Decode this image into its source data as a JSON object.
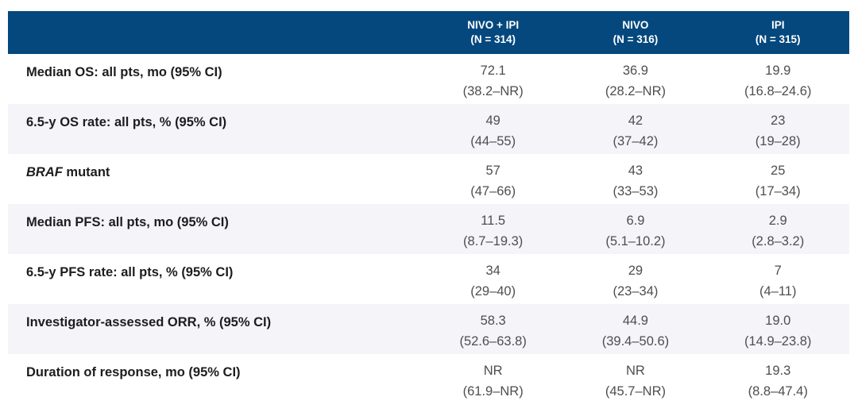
{
  "colors": {
    "header_bg": "#04487E",
    "header_text": "#FFFFFF",
    "row_bg": "#FFFFFF",
    "row_alt_bg": "#F5F5F9",
    "label_text": "#1D1D1F",
    "value_text": "#4E4E50"
  },
  "table": {
    "header": {
      "cols": [
        {
          "name": "NIVO + IPI",
          "n": "(N = 314)"
        },
        {
          "name": "NIVO",
          "n": "(N = 316)"
        },
        {
          "name": "IPI",
          "n": "(N = 315)"
        }
      ]
    },
    "rows": [
      {
        "label_italic": "",
        "label": "Median OS: all pts, mo (95% CI)",
        "cells": [
          {
            "value": "72.1",
            "ci": "(38.2–NR)"
          },
          {
            "value": "36.9",
            "ci": "(28.2–NR)"
          },
          {
            "value": "19.9",
            "ci": "(16.8–24.6)"
          }
        ]
      },
      {
        "label_italic": "",
        "label": "6.5-y OS rate: all pts, % (95% CI)",
        "cells": [
          {
            "value": "49",
            "ci": "(44–55)"
          },
          {
            "value": "42",
            "ci": "(37–42)"
          },
          {
            "value": "23",
            "ci": "(19–28)"
          }
        ]
      },
      {
        "label_italic": "BRAF",
        "label": " mutant",
        "cells": [
          {
            "value": "57",
            "ci": "(47–66)"
          },
          {
            "value": "43",
            "ci": "(33–53)"
          },
          {
            "value": "25",
            "ci": "(17–34)"
          }
        ]
      },
      {
        "label_italic": "",
        "label": "Median PFS: all pts, mo (95% CI)",
        "cells": [
          {
            "value": "11.5",
            "ci": "(8.7–19.3)"
          },
          {
            "value": "6.9",
            "ci": "(5.1–10.2)"
          },
          {
            "value": "2.9",
            "ci": "(2.8–3.2)"
          }
        ]
      },
      {
        "label_italic": "",
        "label": "6.5-y PFS rate: all pts, % (95% CI)",
        "cells": [
          {
            "value": "34",
            "ci": "(29–40)"
          },
          {
            "value": "29",
            "ci": "(23–34)"
          },
          {
            "value": "7",
            "ci": "(4–11)"
          }
        ]
      },
      {
        "label_italic": "",
        "label": "Investigator-assessed ORR, % (95% CI)",
        "cells": [
          {
            "value": "58.3",
            "ci": "(52.6–63.8)"
          },
          {
            "value": "44.9",
            "ci": "(39.4–50.6)"
          },
          {
            "value": "19.0",
            "ci": "(14.9–23.8)"
          }
        ]
      },
      {
        "label_italic": "",
        "label": "Duration of response, mo (95% CI)",
        "cells": [
          {
            "value": "NR",
            "ci": "(61.9–NR)"
          },
          {
            "value": "NR",
            "ci": "(45.7–NR)"
          },
          {
            "value": "19.3",
            "ci": "(8.8–47.4)"
          }
        ]
      }
    ]
  }
}
